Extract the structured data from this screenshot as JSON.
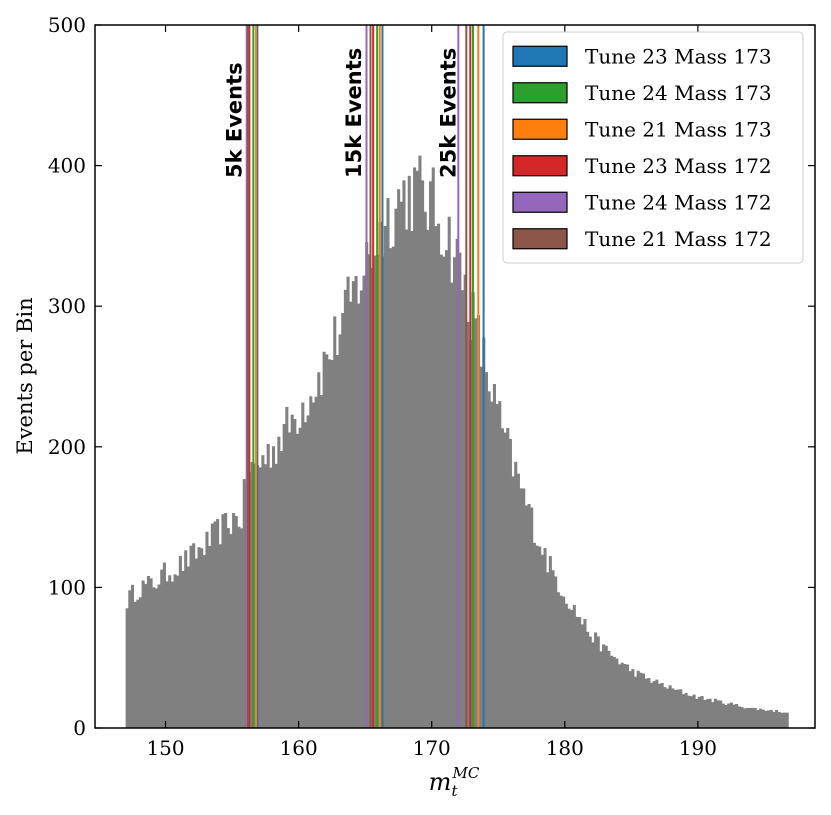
{
  "chart_data": {
    "type": "bar",
    "title": "",
    "xlabel": "m_t^{MC}",
    "xlabel_main": "m",
    "xlabel_sub": "t",
    "xlabel_sup": "MC",
    "ylabel": "Events per Bin",
    "xlim": [
      144.7,
      198.8
    ],
    "ylim": [
      0,
      500
    ],
    "xticks": [
      150,
      160,
      170,
      180,
      190
    ],
    "yticks": [
      0,
      100,
      200,
      300,
      400,
      500
    ],
    "grid": false,
    "legend_position": "top-right",
    "histogram": {
      "bin_start": 147.0,
      "bin_width": 0.2,
      "color": "#808080",
      "shape_points": [
        [
          147.0,
          90
        ],
        [
          148.0,
          100
        ],
        [
          149.0,
          102
        ],
        [
          150.0,
          110
        ],
        [
          151.0,
          115
        ],
        [
          152.0,
          122
        ],
        [
          153.0,
          130
        ],
        [
          154.0,
          140
        ],
        [
          155.0,
          148
        ],
        [
          155.8,
          150
        ],
        [
          156.0,
          178
        ],
        [
          157.0,
          188
        ],
        [
          158.0,
          198
        ],
        [
          159.0,
          212
        ],
        [
          160.0,
          225
        ],
        [
          161.0,
          240
        ],
        [
          162.0,
          260
        ],
        [
          163.0,
          282
        ],
        [
          164.0,
          305
        ],
        [
          165.0,
          328
        ],
        [
          166.0,
          350
        ],
        [
          167.0,
          370
        ],
        [
          168.0,
          380
        ],
        [
          169.0,
          382
        ],
        [
          170.0,
          372
        ],
        [
          171.0,
          355
        ],
        [
          172.0,
          330
        ],
        [
          173.0,
          295
        ],
        [
          174.0,
          258
        ],
        [
          175.0,
          222
        ],
        [
          176.0,
          190
        ],
        [
          177.0,
          162
        ],
        [
          178.0,
          135
        ],
        [
          179.0,
          112
        ],
        [
          180.0,
          95
        ],
        [
          181.0,
          80
        ],
        [
          182.0,
          66
        ],
        [
          183.0,
          56
        ],
        [
          184.0,
          48
        ],
        [
          185.0,
          41
        ],
        [
          186.0,
          36
        ],
        [
          187.0,
          32
        ],
        [
          188.0,
          28
        ],
        [
          189.0,
          25
        ],
        [
          190.0,
          22
        ],
        [
          191.0,
          20
        ],
        [
          192.0,
          18
        ],
        [
          193.0,
          16
        ],
        [
          194.0,
          14
        ],
        [
          195.0,
          13
        ],
        [
          196.0,
          12
        ],
        [
          196.8,
          11
        ]
      ],
      "noise_amplitude": 0.08
    },
    "series": [
      {
        "name": "Tune 23 Mass 173",
        "color": "#1f77b4"
      },
      {
        "name": "Tune 24 Mass 173",
        "color": "#2ca02c"
      },
      {
        "name": "Tune 21 Mass 173",
        "color": "#ff7f0e"
      },
      {
        "name": "Tune 23 Mass 172",
        "color": "#d62728"
      },
      {
        "name": "Tune 24 Mass 172",
        "color": "#9467bd"
      },
      {
        "name": "Tune 21 Mass 172",
        "color": "#8c564b"
      }
    ],
    "vlines": {
      "5k Events": [
        156.9,
        156.6,
        156.8,
        156.3,
        156.1,
        156.2
      ],
      "15k Events": [
        166.3,
        165.9,
        166.1,
        165.6,
        165.1,
        165.4
      ],
      "25k Events": [
        173.9,
        173.1,
        173.5,
        172.9,
        172.0,
        172.6
      ]
    },
    "annotations": [
      {
        "text": "5k Events",
        "x": 156.0
      },
      {
        "text": "15k Events",
        "x": 165.0
      },
      {
        "text": "25k Events",
        "x": 172.1
      }
    ]
  }
}
